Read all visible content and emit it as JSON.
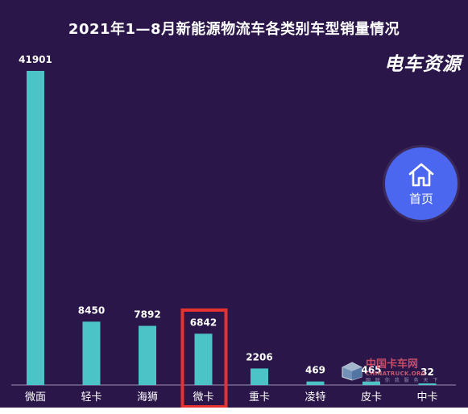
{
  "chart_data": {
    "type": "bar",
    "title": "2021年1—8月新能源物流车各类别车型销量情况",
    "categories": [
      "微面",
      "轻卡",
      "海狮",
      "微卡",
      "重卡",
      "凌特",
      "皮卡",
      "中卡"
    ],
    "values": [
      41901,
      8450,
      7892,
      6842,
      2206,
      469,
      465,
      32
    ],
    "xlabel": "",
    "ylabel": "",
    "ylim": [
      0,
      45000
    ],
    "grid": false,
    "legend": "none",
    "highlight_category": "微卡"
  },
  "colors": {
    "background": "#2a1649",
    "bar": "#4cc3c6",
    "highlight_box": "#e5322f",
    "axis": "#9b93b3",
    "home_button": "#4b67f0"
  },
  "brand": {
    "logo_text": "电车资源"
  },
  "nav": {
    "home_label": "首页",
    "home_icon": "home-icon"
  },
  "watermark": {
    "cn": "中国卡车网",
    "en": "CHINATRUCK.ORG",
    "sub": "网 联 你 我 服 务 天 下"
  }
}
